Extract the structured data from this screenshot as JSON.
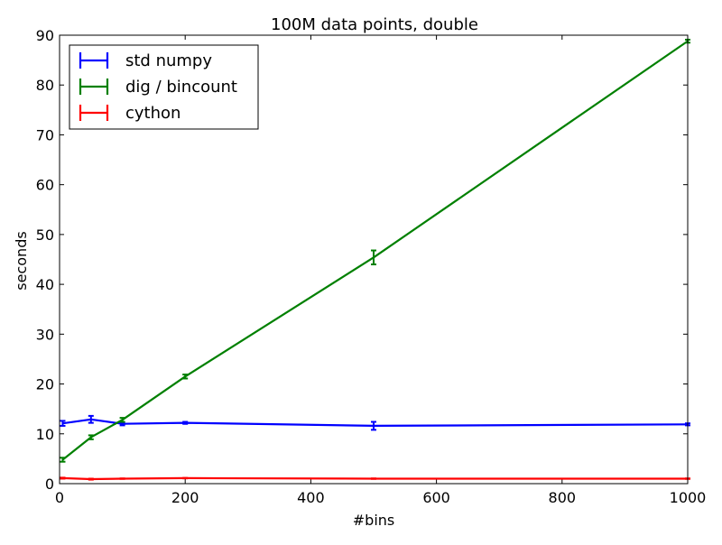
{
  "chart_data": {
    "type": "line",
    "title": "100M data points, double",
    "xlabel": "#bins",
    "ylabel": "seconds",
    "xlim": [
      0,
      1000
    ],
    "ylim": [
      0,
      90
    ],
    "xticks": [
      0,
      200,
      400,
      600,
      800,
      1000
    ],
    "yticks": [
      0,
      10,
      20,
      30,
      40,
      50,
      60,
      70,
      80,
      90
    ],
    "grid": false,
    "legend_position": "top-left",
    "series": [
      {
        "name": "std numpy",
        "color": "#0000ff",
        "x": [
          5,
          50,
          100,
          200,
          500,
          1000
        ],
        "y": [
          12.1,
          12.9,
          12.0,
          12.2,
          11.6,
          11.9
        ],
        "err": [
          0.5,
          0.7,
          0.3,
          0.2,
          0.8,
          0.2
        ]
      },
      {
        "name": "dig / bincount",
        "color": "#008000",
        "x": [
          5,
          50,
          100,
          200,
          500,
          1000
        ],
        "y": [
          4.8,
          9.3,
          12.8,
          21.5,
          45.4,
          88.8
        ],
        "err": [
          0.4,
          0.4,
          0.4,
          0.4,
          1.4,
          0.3
        ]
      },
      {
        "name": "cython",
        "color": "#ff0000",
        "x": [
          5,
          50,
          100,
          200,
          500,
          1000
        ],
        "y": [
          1.1,
          0.9,
          1.0,
          1.1,
          1.0,
          1.0
        ],
        "err": [
          0.1,
          0.1,
          0.05,
          0.05,
          0.05,
          0.05
        ]
      }
    ]
  }
}
